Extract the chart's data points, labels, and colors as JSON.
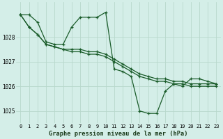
{
  "title": "Graphe pression niveau de la mer (hPa)",
  "background_color": "#d4eee8",
  "grid_color": "#b8d8cc",
  "line_color": "#1a5c2a",
  "xlim": [
    -0.5,
    23.5
  ],
  "ylim": [
    1024.5,
    1029.4
  ],
  "yticks": [
    1025,
    1026,
    1027,
    1028
  ],
  "xticks": [
    0,
    1,
    2,
    3,
    4,
    5,
    6,
    7,
    8,
    9,
    10,
    11,
    12,
    13,
    14,
    15,
    16,
    17,
    18,
    19,
    20,
    21,
    22,
    23
  ],
  "series": [
    [
      1028.9,
      1028.9,
      1028.6,
      1027.8,
      1027.7,
      1027.7,
      1028.4,
      1028.8,
      1028.8,
      1028.8,
      1029.0,
      1026.7,
      1026.6,
      1026.4,
      1025.0,
      1024.9,
      1024.9,
      1025.8,
      1026.1,
      1026.0,
      1026.3,
      1026.3,
      1026.2,
      1026.1
    ],
    [
      1028.9,
      1028.4,
      1028.1,
      1027.7,
      1027.6,
      1027.5,
      1027.5,
      1027.5,
      1027.4,
      1027.4,
      1027.3,
      1027.1,
      1026.9,
      1026.7,
      1026.5,
      1026.4,
      1026.3,
      1026.3,
      1026.2,
      1026.2,
      1026.1,
      1026.1,
      1026.1,
      1026.1
    ],
    [
      1028.9,
      1028.4,
      1028.1,
      1027.7,
      1027.6,
      1027.5,
      1027.4,
      1027.4,
      1027.3,
      1027.3,
      1027.2,
      1027.0,
      1026.8,
      1026.6,
      1026.4,
      1026.3,
      1026.2,
      1026.2,
      1026.1,
      1026.1,
      1026.0,
      1026.0,
      1026.0,
      1026.0
    ]
  ]
}
